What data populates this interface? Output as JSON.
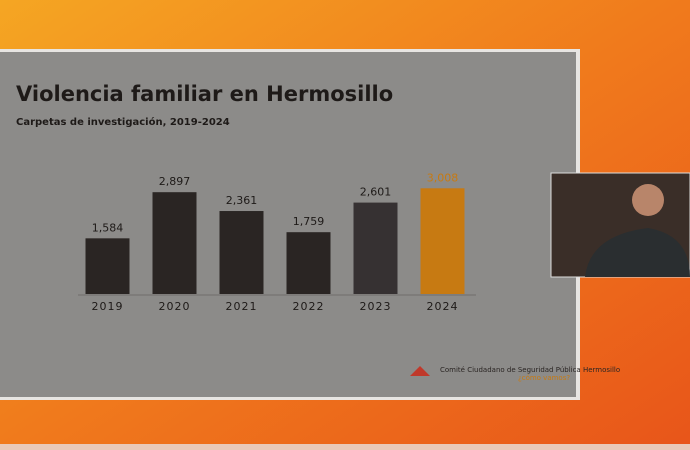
{
  "chart_data": {
    "type": "bar",
    "title": "Violencia familiar en Hermosillo",
    "subtitle": "Carpetas de investigación, 2019-2024",
    "categories": [
      "2019",
      "2020",
      "2021",
      "2022",
      "2023",
      "2024"
    ],
    "values": [
      1584,
      2897,
      2361,
      1759,
      2601,
      3008
    ],
    "value_labels": [
      "1,584",
      "2,897",
      "2,361",
      "1,759",
      "2,601",
      "3,008"
    ],
    "colors": [
      "#2a2523",
      "#2a2523",
      "#2a2523",
      "#2a2523",
      "#363132",
      "#c77a12"
    ],
    "ylim": [
      0,
      3500
    ]
  },
  "logos": {
    "committee": "Comité Ciudadano de Seguridad Pública Hermosillo",
    "partner": "¿cómo vamos?"
  }
}
